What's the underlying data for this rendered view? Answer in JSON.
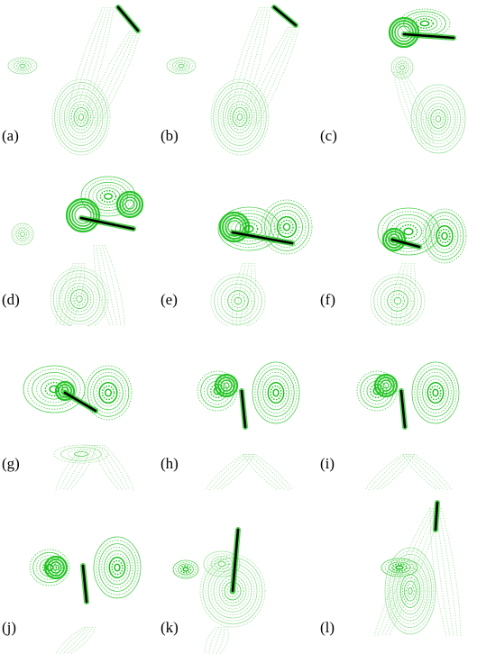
{
  "figure": {
    "panels": [
      {
        "label": "(a)"
      },
      {
        "label": "(b)"
      },
      {
        "label": "(c)"
      },
      {
        "label": "(d)"
      },
      {
        "label": "(e)"
      },
      {
        "label": "(f)"
      },
      {
        "label": "(g)"
      },
      {
        "label": "(h)"
      },
      {
        "label": "(i)"
      },
      {
        "label": "(j)"
      },
      {
        "label": "(k)"
      },
      {
        "label": "(l)"
      }
    ],
    "colors": {
      "contour_light": "#9fe09f",
      "contour_mid": "#4ccf4c",
      "contour_strong": "#0fbf0f",
      "body": "#000000"
    }
  }
}
